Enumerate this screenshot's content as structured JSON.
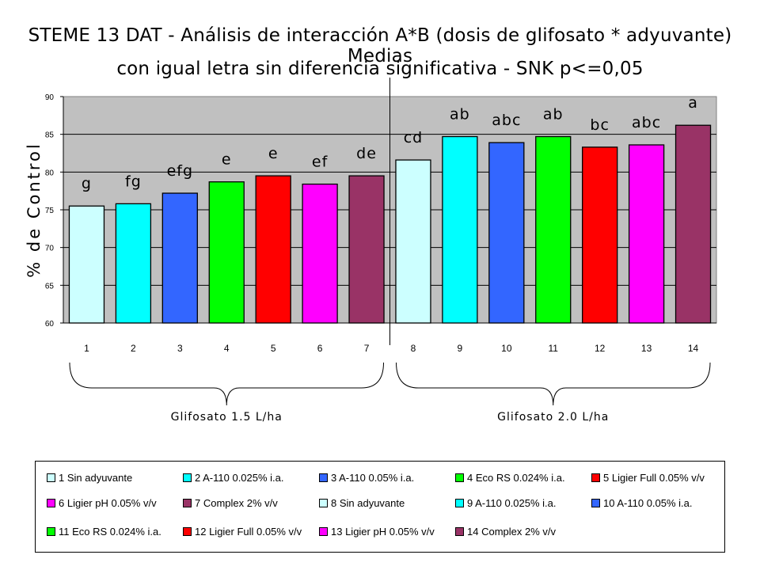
{
  "title_line1": "STEME 13 DAT - Análisis de interacción A*B (dosis de glifosato * adyuvante) Medias",
  "title_line2": "con igual letra sin diferencia significativa - SNK p<=0,05",
  "chart_data": {
    "type": "bar",
    "categories": [
      "1",
      "2",
      "3",
      "4",
      "5",
      "6",
      "7",
      "8",
      "9",
      "10",
      "11",
      "12",
      "13",
      "14"
    ],
    "values": [
      75.5,
      75.8,
      77.2,
      78.7,
      79.5,
      78.4,
      79.5,
      81.6,
      84.7,
      83.9,
      84.7,
      83.3,
      83.6,
      86.2
    ],
    "letters": [
      "g",
      "fg",
      "efg",
      "e",
      "e",
      "ef",
      "de",
      "cd",
      "ab",
      "abc",
      "ab",
      "bc",
      "abc",
      "a"
    ],
    "colors": [
      "#ccffff",
      "#00ffff",
      "#3366ff",
      "#00ff00",
      "#ff0000",
      "#ff00ff",
      "#993366",
      "#ccffff",
      "#00ffff",
      "#3366ff",
      "#00ff00",
      "#ff0000",
      "#ff00ff",
      "#993366"
    ],
    "ylabel": "% de Control",
    "ylim": [
      60,
      90
    ],
    "yticks": [
      "60",
      "65",
      "70",
      "75",
      "80",
      "85",
      "90"
    ],
    "grid": true,
    "plot_background": "#c0c0c0",
    "groups": [
      {
        "label": "Glifosato 1.5 L/ha",
        "from": 1,
        "to": 7
      },
      {
        "label": "Glifosato 2.0 L/ha",
        "from": 8,
        "to": 14
      }
    ],
    "legend": [
      {
        "label": "1  Sin adyuvante",
        "color": "#ccffff"
      },
      {
        "label": "2  A-110  0.025% i.a.",
        "color": "#00ffff"
      },
      {
        "label": "3  A-110  0.05% i.a.",
        "color": "#3366ff"
      },
      {
        "label": "4  Eco RS  0.024% i.a.",
        "color": "#00ff00"
      },
      {
        "label": "5  Ligier Full  0.05% v/v",
        "color": "#ff0000"
      },
      {
        "label": "6  Ligier pH  0.05% v/v",
        "color": "#ff00ff"
      },
      {
        "label": "7  Complex 2% v/v",
        "color": "#993366"
      },
      {
        "label": "8  Sin adyuvante",
        "color": "#ccffff"
      },
      {
        "label": "9  A-110  0.025% i.a.",
        "color": "#00ffff"
      },
      {
        "label": "10  A-110  0.05% i.a.",
        "color": "#3366ff"
      },
      {
        "label": "11 Eco RS  0.024% i.a.",
        "color": "#00ff00"
      },
      {
        "label": "12 Ligier Full  0.05% v/v",
        "color": "#ff0000"
      },
      {
        "label": "13 Ligier pH  0.05% v/v",
        "color": "#ff00ff"
      },
      {
        "label": "14 Complex 2% v/v",
        "color": "#993366"
      }
    ]
  }
}
